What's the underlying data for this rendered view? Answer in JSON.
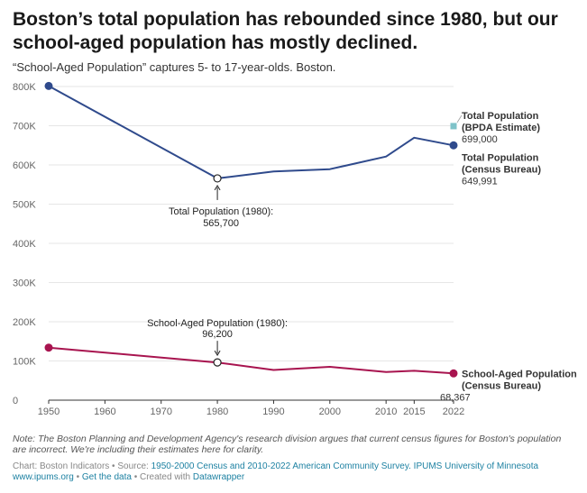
{
  "header": {
    "title": "Boston’s total population has rebounded since 1980, but our school-aged population has mostly declined.",
    "subtitle": "“School-Aged Population” captures 5- to 17-year-olds. Boston."
  },
  "chart_data": {
    "type": "line",
    "x": [
      1950,
      1960,
      1970,
      1980,
      1990,
      2000,
      2010,
      2015,
      2022
    ],
    "x_ticks": [
      "1950",
      "1960",
      "1970",
      "1980",
      "1990",
      "2000",
      "2010",
      "2015",
      "2022"
    ],
    "y_ticks": [
      "0",
      "100K",
      "200K",
      "300K",
      "400K",
      "500K",
      "600K",
      "700K",
      "800K"
    ],
    "ylim": [
      0,
      800000
    ],
    "colors": {
      "total": "#2f4a8c",
      "school": "#a8144f",
      "bpda": "#7fc3c9",
      "grid": "#e6e6e6",
      "axis": "#333333"
    },
    "series": [
      {
        "name": "Total Population (Census Bureau)",
        "x": [
          1950,
          1980,
          1990,
          2000,
          2010,
          2015,
          2022
        ],
        "values": [
          801444,
          565700,
          583300,
          589100,
          621400,
          669500,
          649991
        ],
        "label_lines": [
          "Total Population",
          "(Census Bureau)"
        ],
        "value_label": "649,991"
      },
      {
        "name": "School-Aged Population (Census Bureau)",
        "x": [
          1950,
          1980,
          1990,
          2000,
          2010,
          2015,
          2022
        ],
        "values": [
          134000,
          96200,
          77000,
          85000,
          72000,
          75000,
          68367
        ],
        "label_lines": [
          "School-Aged Population",
          "(Census Bureau)"
        ],
        "value_label": "68,367"
      }
    ],
    "estimate": {
      "name": "Total Population (BPDA Estimate)",
      "x": 2022,
      "value": 699000,
      "label_lines": [
        "Total Population",
        "(BPDA Estimate)"
      ],
      "value_label": "699,000"
    },
    "annotations": [
      {
        "series": 0,
        "x": 1980,
        "value": 565700,
        "lines": [
          "Total Population (1980):",
          "565,700"
        ],
        "position": "below"
      },
      {
        "series": 1,
        "x": 1980,
        "value": 96200,
        "lines": [
          "School-Aged Population (1980):",
          "96,200"
        ],
        "position": "above"
      }
    ]
  },
  "notes": {
    "note": "Note: The Boston Planning and Development Agency's research division argues that current census figures for Boston's population are incorrect. We're including their estimates here for clarity."
  },
  "footer": {
    "chart_prefix": "Chart: Boston Indicators • Source: ",
    "source_link": "1950-2000 Census and 2010-2022 American Community Survey. IPUMS University of Minnesota",
    "site_link": "www.ipums.org",
    "sep": " • ",
    "get_data": "Get the data",
    "created_prefix": " • Created with ",
    "datawrapper": "Datawrapper"
  }
}
